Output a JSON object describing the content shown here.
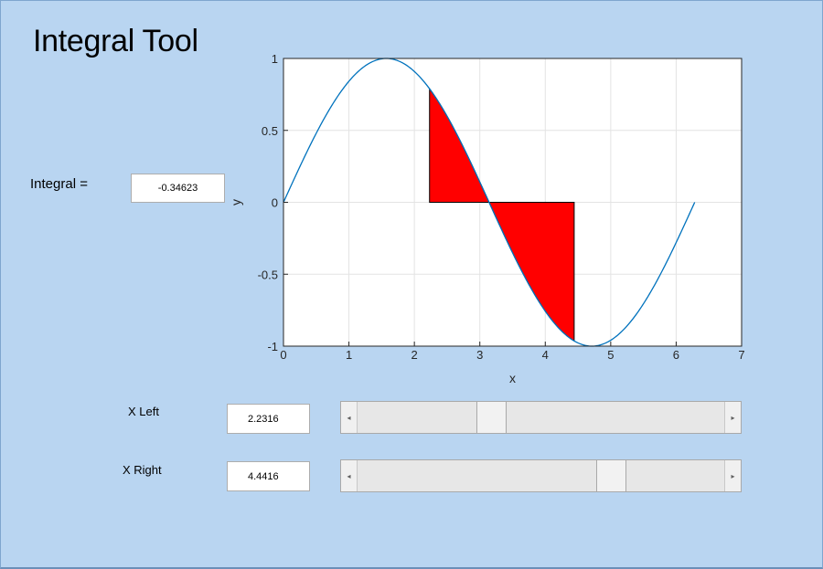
{
  "app": {
    "title": "Integral Tool"
  },
  "integral": {
    "label": "Integral =",
    "value": "-0.34623"
  },
  "sliders": [
    {
      "label": "X Left",
      "value": "2.2316",
      "min": 0,
      "max": 6.2832,
      "position": 2.2316
    },
    {
      "label": "X Right",
      "value": "4.4416",
      "min": 0,
      "max": 6.2832,
      "position": 4.4416
    }
  ],
  "chart_data": {
    "type": "area",
    "xlabel": "x",
    "ylabel": "y",
    "xlim": [
      0,
      7
    ],
    "ylim": [
      -1,
      1
    ],
    "x_ticks": [
      "0",
      "1",
      "2",
      "3",
      "4",
      "5",
      "6",
      "7"
    ],
    "y_ticks": [
      "-1",
      "-0.5",
      "0",
      "0.5",
      "1"
    ],
    "grid": true,
    "series": [
      {
        "function": "sin(x)",
        "x_range": [
          0,
          6.2832
        ],
        "color": "#0072bd"
      }
    ],
    "shaded_region": {
      "x_from": 2.2316,
      "x_to": 4.4416,
      "fill": "#ff0000",
      "edge": "#000000"
    }
  },
  "colors": {
    "background": "#b9d5f1",
    "curve": "#0072bd",
    "fill": "#ff0000"
  },
  "icons": {
    "scroll_left": "◂",
    "scroll_right": "▸"
  }
}
